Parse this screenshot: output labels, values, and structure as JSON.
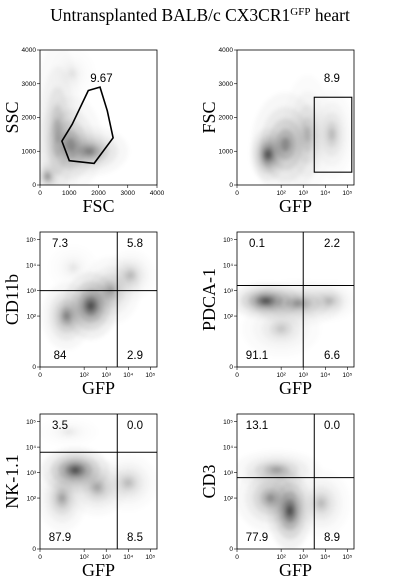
{
  "title": "Untransplanted BALB/c CX3CR1",
  "title_sup": "GFP",
  "title_suffix": " heart",
  "chart_data": [
    {
      "type": "heatmap",
      "plot_style": "flow-cytometry-density",
      "xlabel": "FSC",
      "ylabel": "SSC",
      "xscale": "linear",
      "yscale": "linear",
      "xlim": [
        0,
        4000
      ],
      "ylim": [
        0,
        4000
      ],
      "xticks": [
        "0",
        "1000",
        "2000",
        "3000",
        "4000"
      ],
      "yticks": [
        "0",
        "1000",
        "2000",
        "3000",
        "4000"
      ],
      "density": [
        {
          "x": 1700,
          "y": 1000,
          "sx": 600,
          "sy": 330,
          "w": 0.6
        },
        {
          "x": 1050,
          "y": 1200,
          "sx": 500,
          "sy": 650,
          "w": 0.45
        },
        {
          "x": 600,
          "y": 1600,
          "sx": 380,
          "sy": 1200,
          "w": 0.35
        },
        {
          "x": 250,
          "y": 250,
          "sx": 180,
          "sy": 200,
          "w": 0.55
        },
        {
          "x": 1100,
          "y": 3300,
          "sx": 350,
          "sy": 350,
          "w": 0.12
        }
      ],
      "gates": [
        {
          "shape": "polygon",
          "points": [
            [
              1000,
              720
            ],
            [
              1850,
              640
            ],
            [
              2500,
              1400
            ],
            [
              2300,
              2200
            ],
            [
              2050,
              2900
            ],
            [
              1650,
              2800
            ],
            [
              1100,
              1800
            ],
            [
              750,
              1300
            ]
          ],
          "percent": "9.67",
          "label_at": [
            2100,
            3050
          ]
        }
      ]
    },
    {
      "type": "heatmap",
      "plot_style": "flow-cytometry-density",
      "xlabel": "GFP",
      "ylabel": "FSC",
      "xscale": "log",
      "yscale": "linear",
      "xlim": [
        0,
        5.3
      ],
      "ylim": [
        0,
        4000
      ],
      "xticks": [
        "0",
        "10²",
        "10³",
        "10⁴",
        "10⁵"
      ],
      "yticks": [
        "0",
        "1000",
        "2000",
        "3000",
        "4000"
      ],
      "density": [
        {
          "x": 1.4,
          "y": 900,
          "sx": 0.35,
          "sy": 350,
          "w": 1.0
        },
        {
          "x": 2.2,
          "y": 1200,
          "sx": 0.7,
          "sy": 700,
          "w": 0.55
        },
        {
          "x": 3.2,
          "y": 1500,
          "sx": 0.5,
          "sy": 800,
          "w": 0.3
        },
        {
          "x": 4.3,
          "y": 1500,
          "sx": 0.45,
          "sy": 600,
          "w": 0.3
        }
      ],
      "gates": [
        {
          "shape": "rect",
          "x": [
            3.5,
            5.2
          ],
          "y": [
            380,
            2600
          ],
          "percent": "8.9",
          "label_at": [
            4.3,
            3050
          ]
        }
      ]
    },
    {
      "type": "heatmap",
      "plot_style": "flow-cytometry-density",
      "xlabel": "GFP",
      "ylabel": "CD11b",
      "xscale": "log",
      "yscale": "log",
      "xlim": [
        0,
        5.3
      ],
      "ylim": [
        0,
        5.3
      ],
      "xticks": [
        "0",
        "10²",
        "10³",
        "10⁴",
        "10⁵"
      ],
      "yticks": [
        "0",
        "10²",
        "10³",
        "10⁴",
        "10⁵"
      ],
      "density": [
        {
          "x": 2.3,
          "y": 2.4,
          "sx": 0.55,
          "sy": 0.6,
          "w": 1.0
        },
        {
          "x": 1.2,
          "y": 2.0,
          "sx": 0.5,
          "sy": 0.6,
          "w": 0.6
        },
        {
          "x": 3.2,
          "y": 3.0,
          "sx": 0.6,
          "sy": 0.6,
          "w": 0.4
        },
        {
          "x": 4.1,
          "y": 3.6,
          "sx": 0.5,
          "sy": 0.45,
          "w": 0.3
        },
        {
          "x": 1.5,
          "y": 3.9,
          "sx": 0.5,
          "sy": 0.4,
          "w": 0.12
        }
      ],
      "quadrant": {
        "x": 3.5,
        "y": 3.0,
        "percent": {
          "ul": "7.3",
          "ur": "5.8",
          "ll": "84",
          "lr": "2.9"
        }
      }
    },
    {
      "type": "heatmap",
      "plot_style": "flow-cytometry-density",
      "xlabel": "GFP",
      "ylabel": "PDCA-1",
      "xscale": "log",
      "yscale": "log",
      "xlim": [
        0,
        5.3
      ],
      "ylim": [
        0,
        5.3
      ],
      "xticks": [
        "0",
        "10²",
        "10³",
        "10⁴",
        "10⁵"
      ],
      "yticks": [
        "0",
        "10²",
        "10³",
        "10⁴",
        "10⁵"
      ],
      "density": [
        {
          "x": 1.3,
          "y": 2.6,
          "sx": 0.7,
          "sy": 0.32,
          "w": 1.0
        },
        {
          "x": 2.8,
          "y": 2.5,
          "sx": 0.9,
          "sy": 0.4,
          "w": 0.5
        },
        {
          "x": 4.2,
          "y": 2.6,
          "sx": 0.55,
          "sy": 0.35,
          "w": 0.3
        },
        {
          "x": 2.0,
          "y": 1.5,
          "sx": 0.8,
          "sy": 0.5,
          "w": 0.25
        }
      ],
      "quadrant": {
        "x": 3.0,
        "y": 3.2,
        "percent": {
          "ul": "0.1",
          "ur": "2.2",
          "ll": "91.1",
          "lr": "6.6"
        }
      }
    },
    {
      "type": "heatmap",
      "plot_style": "flow-cytometry-density",
      "xlabel": "GFP",
      "ylabel": "NK-1.1",
      "xscale": "log",
      "yscale": "log",
      "xlim": [
        0,
        5.3
      ],
      "ylim": [
        0,
        5.3
      ],
      "xticks": [
        "0",
        "10²",
        "10³",
        "10⁴",
        "10⁵"
      ],
      "yticks": [
        "0",
        "10²",
        "10³",
        "10⁴",
        "10⁵"
      ],
      "density": [
        {
          "x": 1.6,
          "y": 3.1,
          "sx": 0.7,
          "sy": 0.4,
          "w": 1.0
        },
        {
          "x": 1.0,
          "y": 2.0,
          "sx": 0.5,
          "sy": 0.6,
          "w": 0.45
        },
        {
          "x": 2.6,
          "y": 2.4,
          "sx": 0.6,
          "sy": 0.5,
          "w": 0.4
        },
        {
          "x": 4.0,
          "y": 2.6,
          "sx": 0.6,
          "sy": 0.5,
          "w": 0.3
        },
        {
          "x": 1.3,
          "y": 4.6,
          "sx": 0.6,
          "sy": 0.25,
          "w": 0.12
        }
      ],
      "quadrant": {
        "x": 3.5,
        "y": 3.8,
        "percent": {
          "ul": "3.5",
          "ur": "0.0",
          "ll": "87.9",
          "lr": "8.5"
        }
      }
    },
    {
      "type": "heatmap",
      "plot_style": "flow-cytometry-density",
      "xlabel": "GFP",
      "ylabel": "CD3",
      "xscale": "log",
      "yscale": "log",
      "xlim": [
        0,
        5.3
      ],
      "ylim": [
        0,
        5.3
      ],
      "xticks": [
        "0",
        "10²",
        "10³",
        "10⁴",
        "10⁵"
      ],
      "yticks": [
        "0",
        "10²",
        "10³",
        "10⁴",
        "10⁵"
      ],
      "density": [
        {
          "x": 2.4,
          "y": 1.5,
          "sx": 0.45,
          "sy": 0.7,
          "w": 1.0
        },
        {
          "x": 1.5,
          "y": 2.0,
          "sx": 0.7,
          "sy": 0.6,
          "w": 0.5
        },
        {
          "x": 1.8,
          "y": 3.1,
          "sx": 0.9,
          "sy": 0.35,
          "w": 0.45
        },
        {
          "x": 3.8,
          "y": 1.8,
          "sx": 0.6,
          "sy": 0.6,
          "w": 0.3
        }
      ],
      "quadrant": {
        "x": 3.5,
        "y": 2.8,
        "percent": {
          "ul": "13.1",
          "ur": "0.0",
          "ll": "77.9",
          "lr": "8.9"
        }
      }
    }
  ]
}
